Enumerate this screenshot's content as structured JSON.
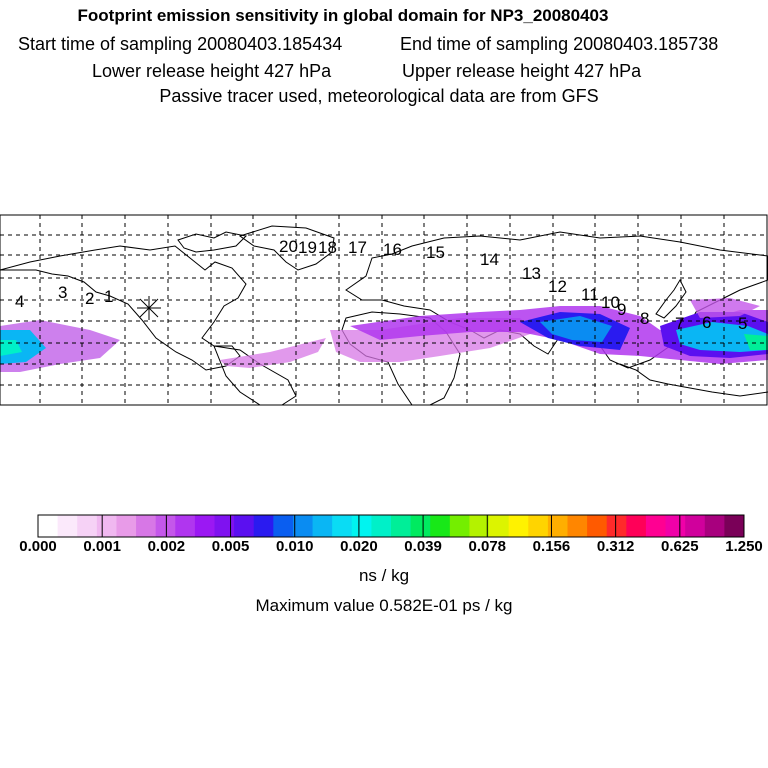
{
  "header": {
    "title": "Footprint emission sensitivity in global domain for NP3_20080403",
    "start_sampling": "Start time of sampling 20080403.185434",
    "end_sampling": "End time of sampling 20080403.185738",
    "lower_release": "Lower release height  427 hPa",
    "upper_release": "Upper release height  427 hPa",
    "tracer_note": "Passive tracer used, meteorological data are from GFS"
  },
  "map": {
    "release_marker": "release-point-asterisk",
    "trajectory_labels": [
      "1",
      "2",
      "3",
      "4",
      "5",
      "6",
      "7",
      "8",
      "9",
      "10",
      "11",
      "12",
      "13",
      "14",
      "15",
      "16",
      "17",
      "18",
      "19",
      "20"
    ]
  },
  "colorbar": {
    "colors": [
      "#ffffff",
      "#fbe9fb",
      "#f6d2f6",
      "#f0b8f0",
      "#e89be8",
      "#d777e6",
      "#c457ea",
      "#b036ef",
      "#9b18f3",
      "#7f12f0",
      "#5b10f0",
      "#2a1bf0",
      "#0a5ef0",
      "#0a8cf2",
      "#0ab6f4",
      "#0adcf4",
      "#00f4f0",
      "#00f0c8",
      "#00ee98",
      "#00ea60",
      "#18e818",
      "#74ee00",
      "#b4f200",
      "#dcf400",
      "#fff200",
      "#ffd400",
      "#ffae00",
      "#ff8600",
      "#ff5a00",
      "#ff2a2a",
      "#ff0058",
      "#ff0092",
      "#f000a8",
      "#d0009c",
      "#a8007e",
      "#7a0058"
    ],
    "major_ticks": [
      "0.000",
      "0.001",
      "0.002",
      "0.005",
      "0.010",
      "0.020",
      "0.039",
      "0.078",
      "0.156",
      "0.312",
      "0.625",
      "1.250"
    ],
    "unit": "ns / kg"
  },
  "footer": {
    "max_value": "Maximum value  0.582E-01 ps / kg"
  }
}
